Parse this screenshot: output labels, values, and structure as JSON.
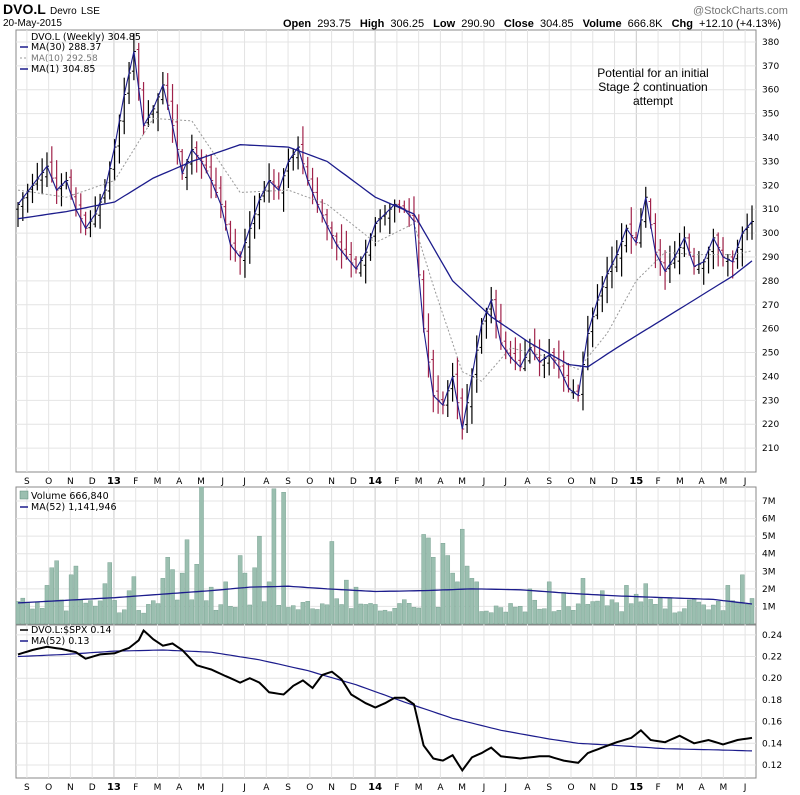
{
  "header": {
    "symbol": "DVO.L",
    "company": "Devro",
    "exchange": "LSE",
    "date": "20-May-2015",
    "open_label": "Open",
    "open": "293.75",
    "high_label": "High",
    "high": "306.25",
    "low_label": "Low",
    "low": "290.90",
    "close_label": "Close",
    "close": "304.85",
    "volume_label": "Volume",
    "volume": "666.8K",
    "chg_label": "Chg",
    "chg": "+12.10 (+4.13%)",
    "watermark": "@StockCharts.com"
  },
  "colors": {
    "up": "#000000",
    "down": "#a0224a",
    "ma_blue": "#1c1c8c",
    "ma_dotted": "#999999",
    "volume": "#9bbfb0",
    "grid": "#e4e4e4"
  },
  "chart_data": [
    {
      "type": "line",
      "title": "DVO.L (Weekly) 304.85",
      "legend": [
        "DVO.L (Weekly) 304.85",
        "MA(30) 288.37",
        "MA(10) 292.58",
        "MA(1) 304.85"
      ],
      "annotation": [
        "Potential for an initial",
        "Stage 2 continuation",
        "attempt"
      ],
      "ylim": [
        200,
        385
      ],
      "yticks": [
        210,
        220,
        230,
        240,
        250,
        260,
        270,
        280,
        290,
        300,
        310,
        320,
        330,
        340,
        350,
        360,
        370,
        380
      ],
      "price_knots": [
        [
          0,
          312
        ],
        [
          3,
          320
        ],
        [
          6,
          328
        ],
        [
          8,
          318
        ],
        [
          10,
          322
        ],
        [
          12,
          310
        ],
        [
          14,
          302
        ],
        [
          16,
          308
        ],
        [
          18,
          318
        ],
        [
          20,
          336
        ],
        [
          22,
          358
        ],
        [
          24,
          376
        ],
        [
          26,
          345
        ],
        [
          28,
          352
        ],
        [
          30,
          362
        ],
        [
          32,
          345
        ],
        [
          34,
          325
        ],
        [
          36,
          335
        ],
        [
          38,
          330
        ],
        [
          40,
          322
        ],
        [
          42,
          312
        ],
        [
          44,
          295
        ],
        [
          46,
          290
        ],
        [
          48,
          302
        ],
        [
          50,
          314
        ],
        [
          52,
          322
        ],
        [
          54,
          318
        ],
        [
          56,
          330
        ],
        [
          58,
          336
        ],
        [
          60,
          322
        ],
        [
          62,
          312
        ],
        [
          64,
          303
        ],
        [
          66,
          295
        ],
        [
          68,
          290
        ],
        [
          70,
          285
        ],
        [
          72,
          292
        ],
        [
          74,
          304
        ],
        [
          76,
          308
        ],
        [
          78,
          312
        ],
        [
          80,
          310
        ],
        [
          82,
          305
        ],
        [
          84,
          260
        ],
        [
          86,
          232
        ],
        [
          88,
          228
        ],
        [
          90,
          240
        ],
        [
          92,
          218
        ],
        [
          94,
          240
        ],
        [
          96,
          262
        ],
        [
          98,
          272
        ],
        [
          100,
          254
        ],
        [
          102,
          248
        ],
        [
          104,
          244
        ],
        [
          106,
          252
        ],
        [
          108,
          246
        ],
        [
          110,
          249
        ],
        [
          112,
          244
        ],
        [
          114,
          235
        ],
        [
          116,
          232
        ],
        [
          118,
          258
        ],
        [
          120,
          272
        ],
        [
          122,
          283
        ],
        [
          124,
          291
        ],
        [
          126,
          302
        ],
        [
          128,
          296
        ],
        [
          130,
          315
        ],
        [
          132,
          292
        ],
        [
          134,
          284
        ],
        [
          136,
          290
        ],
        [
          138,
          298
        ],
        [
          140,
          286
        ],
        [
          142,
          288
        ],
        [
          144,
          298
        ],
        [
          146,
          290
        ],
        [
          148,
          288
        ],
        [
          150,
          300
        ],
        [
          152,
          304.85
        ]
      ],
      "ma30_knots": [
        [
          0,
          306
        ],
        [
          10,
          309
        ],
        [
          20,
          313
        ],
        [
          28,
          323
        ],
        [
          36,
          330
        ],
        [
          46,
          337
        ],
        [
          56,
          336
        ],
        [
          64,
          330
        ],
        [
          74,
          315
        ],
        [
          82,
          308
        ],
        [
          90,
          280
        ],
        [
          98,
          265
        ],
        [
          106,
          254
        ],
        [
          114,
          245
        ],
        [
          118,
          244
        ],
        [
          124,
          252
        ],
        [
          132,
          262
        ],
        [
          140,
          272
        ],
        [
          148,
          282
        ],
        [
          152,
          288.37
        ]
      ],
      "ma10_knots": [
        [
          0,
          318
        ],
        [
          10,
          315
        ],
        [
          20,
          322
        ],
        [
          28,
          348
        ],
        [
          36,
          347
        ],
        [
          46,
          317
        ],
        [
          56,
          318
        ],
        [
          64,
          312
        ],
        [
          74,
          296
        ],
        [
          82,
          304
        ],
        [
          86,
          278
        ],
        [
          92,
          242
        ],
        [
          96,
          238
        ],
        [
          102,
          252
        ],
        [
          110,
          248
        ],
        [
          116,
          243
        ],
        [
          122,
          258
        ],
        [
          128,
          280
        ],
        [
          134,
          292
        ],
        [
          140,
          291
        ],
        [
          148,
          291
        ],
        [
          152,
          292.58
        ]
      ],
      "x_months": [
        "S",
        "O",
        "N",
        "D",
        "13",
        "F",
        "M",
        "A",
        "M",
        "J",
        "J",
        "A",
        "S",
        "O",
        "N",
        "D",
        "14",
        "F",
        "M",
        "A",
        "M",
        "J",
        "J",
        "A",
        "S",
        "O",
        "N",
        "D",
        "15",
        "F",
        "M",
        "A",
        "M",
        "J"
      ],
      "year_months": [
        "13",
        "14",
        "15"
      ]
    },
    {
      "type": "bar",
      "title": "Volume 666,840",
      "legend": [
        "Volume 666,840",
        "MA(52) 1,141,946"
      ],
      "ylim": [
        0,
        7800000
      ],
      "yticks": [
        1000000,
        2000000,
        3000000,
        4000000,
        5000000,
        6000000,
        7000000
      ],
      "ytick_labels": [
        "1M",
        "2M",
        "3M",
        "4M",
        "5M",
        "6M",
        "7M"
      ],
      "spikes": [
        [
          6,
          2.2
        ],
        [
          7,
          3.2
        ],
        [
          8,
          3.6
        ],
        [
          11,
          2.8
        ],
        [
          12,
          3.3
        ],
        [
          18,
          2.3
        ],
        [
          19,
          3.5
        ],
        [
          23,
          1.9
        ],
        [
          24,
          2.7
        ],
        [
          30,
          2.6
        ],
        [
          31,
          3.8
        ],
        [
          32,
          3.1
        ],
        [
          34,
          2.9
        ],
        [
          35,
          4.8
        ],
        [
          37,
          3.4
        ],
        [
          38,
          7.8
        ],
        [
          40,
          2.1
        ],
        [
          43,
          2.4
        ],
        [
          46,
          3.9
        ],
        [
          47,
          2.9
        ],
        [
          49,
          3.2
        ],
        [
          50,
          5.0
        ],
        [
          52,
          2.4
        ],
        [
          53,
          7.7
        ],
        [
          55,
          7.5
        ],
        [
          65,
          4.7
        ],
        [
          68,
          2.5
        ],
        [
          70,
          2.1
        ],
        [
          84,
          5.1
        ],
        [
          85,
          4.9
        ],
        [
          86,
          3.8
        ],
        [
          88,
          4.6
        ],
        [
          89,
          3.9
        ],
        [
          90,
          2.9
        ],
        [
          91,
          2.4
        ],
        [
          92,
          5.4
        ],
        [
          93,
          3.3
        ],
        [
          94,
          2.6
        ],
        [
          95,
          2.4
        ],
        [
          106,
          2.0
        ],
        [
          110,
          2.4
        ],
        [
          113,
          1.8
        ],
        [
          117,
          2.6
        ],
        [
          121,
          1.9
        ],
        [
          126,
          2.2
        ],
        [
          128,
          1.7
        ],
        [
          130,
          2.3
        ],
        [
          147,
          2.2
        ],
        [
          150,
          2.8
        ]
      ],
      "volume_ma_knots": [
        [
          0,
          1.2
        ],
        [
          10,
          1.35
        ],
        [
          20,
          1.5
        ],
        [
          30,
          1.7
        ],
        [
          40,
          1.9
        ],
        [
          48,
          2.1
        ],
        [
          56,
          2.15
        ],
        [
          64,
          2.0
        ],
        [
          74,
          1.85
        ],
        [
          84,
          1.9
        ],
        [
          94,
          2.0
        ],
        [
          104,
          1.95
        ],
        [
          114,
          1.75
        ],
        [
          124,
          1.6
        ],
        [
          134,
          1.5
        ],
        [
          144,
          1.4
        ],
        [
          152,
          1.14
        ]
      ]
    },
    {
      "type": "line",
      "title": "DVO.L:$SPX 0.14",
      "legend": [
        "DVO.L:$SPX 0.14",
        "MA(52) 0.13"
      ],
      "ylim": [
        0.108,
        0.25
      ],
      "yticks": [
        0.12,
        0.14,
        0.16,
        0.18,
        0.2,
        0.22,
        0.24
      ],
      "ytick_labels": [
        "0.12",
        "0.14",
        "0.16",
        "0.18",
        "0.20",
        "0.22",
        "0.24"
      ],
      "ratio_knots": [
        [
          0,
          0.222
        ],
        [
          3,
          0.226
        ],
        [
          6,
          0.229
        ],
        [
          9,
          0.227
        ],
        [
          12,
          0.224
        ],
        [
          14,
          0.218
        ],
        [
          17,
          0.222
        ],
        [
          20,
          0.223
        ],
        [
          23,
          0.228
        ],
        [
          25,
          0.235
        ],
        [
          26,
          0.244
        ],
        [
          28,
          0.236
        ],
        [
          30,
          0.23
        ],
        [
          32,
          0.232
        ],
        [
          34,
          0.226
        ],
        [
          37,
          0.212
        ],
        [
          40,
          0.208
        ],
        [
          43,
          0.202
        ],
        [
          46,
          0.196
        ],
        [
          48,
          0.2
        ],
        [
          50,
          0.196
        ],
        [
          52,
          0.187
        ],
        [
          55,
          0.185
        ],
        [
          57,
          0.193
        ],
        [
          59,
          0.198
        ],
        [
          61,
          0.191
        ],
        [
          63,
          0.203
        ],
        [
          65,
          0.206
        ],
        [
          67,
          0.199
        ],
        [
          69,
          0.185
        ],
        [
          72,
          0.177
        ],
        [
          74,
          0.173
        ],
        [
          76,
          0.177
        ],
        [
          78,
          0.182
        ],
        [
          80,
          0.182
        ],
        [
          82,
          0.176
        ],
        [
          84,
          0.138
        ],
        [
          86,
          0.126
        ],
        [
          88,
          0.124
        ],
        [
          90,
          0.129
        ],
        [
          92,
          0.115
        ],
        [
          94,
          0.127
        ],
        [
          96,
          0.131
        ],
        [
          98,
          0.136
        ],
        [
          100,
          0.128
        ],
        [
          104,
          0.126
        ],
        [
          108,
          0.128
        ],
        [
          110,
          0.128
        ],
        [
          113,
          0.124
        ],
        [
          116,
          0.122
        ],
        [
          118,
          0.131
        ],
        [
          121,
          0.136
        ],
        [
          124,
          0.141
        ],
        [
          127,
          0.145
        ],
        [
          129,
          0.152
        ],
        [
          131,
          0.143
        ],
        [
          134,
          0.141
        ],
        [
          137,
          0.147
        ],
        [
          140,
          0.14
        ],
        [
          143,
          0.143
        ],
        [
          146,
          0.139
        ],
        [
          149,
          0.143
        ],
        [
          152,
          0.145
        ]
      ],
      "ratio_ma_knots": [
        [
          0,
          0.22
        ],
        [
          10,
          0.222
        ],
        [
          20,
          0.225
        ],
        [
          30,
          0.226
        ],
        [
          40,
          0.224
        ],
        [
          50,
          0.217
        ],
        [
          60,
          0.207
        ],
        [
          70,
          0.194
        ],
        [
          80,
          0.178
        ],
        [
          90,
          0.163
        ],
        [
          100,
          0.152
        ],
        [
          110,
          0.144
        ],
        [
          116,
          0.14
        ],
        [
          124,
          0.138
        ],
        [
          134,
          0.135
        ],
        [
          144,
          0.134
        ],
        [
          152,
          0.133
        ]
      ]
    }
  ]
}
